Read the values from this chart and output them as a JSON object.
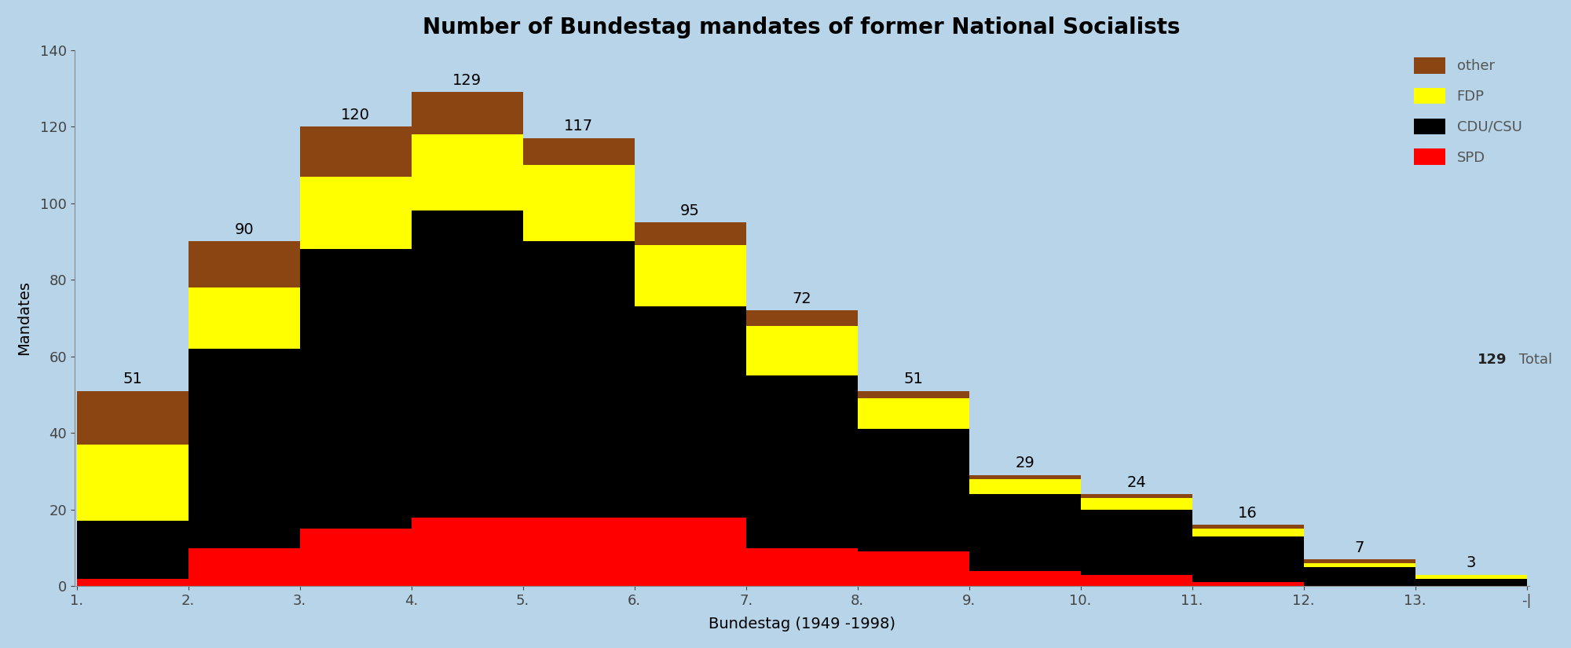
{
  "title": "Number of Bundestag mandates of former National Socialists",
  "xlabel": "Bundestag (1949 -1998)",
  "ylabel": "Mandates",
  "background_color": "#b8d4e8",
  "categories": [
    "1.",
    "2.",
    "3.",
    "4.",
    "5.",
    "6.",
    "7.",
    "8.",
    "9.",
    "10.",
    "11.",
    "12.",
    "13.",
    "-|"
  ],
  "totals": [
    51,
    90,
    120,
    129,
    117,
    95,
    72,
    51,
    29,
    24,
    16,
    7,
    3,
    0
  ],
  "spd": [
    2,
    10,
    15,
    18,
    18,
    18,
    10,
    9,
    4,
    3,
    1,
    0,
    0,
    0
  ],
  "cdu_csu": [
    15,
    52,
    73,
    80,
    72,
    55,
    45,
    32,
    20,
    17,
    12,
    5,
    2,
    0
  ],
  "fdp": [
    20,
    16,
    19,
    20,
    20,
    16,
    13,
    8,
    4,
    3,
    2,
    1,
    1,
    0
  ],
  "other": [
    14,
    12,
    13,
    11,
    7,
    6,
    4,
    2,
    1,
    1,
    1,
    1,
    0,
    0
  ],
  "colors": {
    "spd": "#ff0000",
    "cdu_csu": "#000000",
    "fdp": "#ffff00",
    "other": "#8B4513"
  },
  "legend_labels": [
    "other",
    "FDP",
    "CDU/CSU",
    "SPD"
  ],
  "legend_colors": [
    "#8B4513",
    "#ffff00",
    "#000000",
    "#ff0000"
  ],
  "ylim": [
    0,
    140
  ],
  "yticks": [
    0,
    20,
    40,
    60,
    80,
    100,
    120,
    140
  ],
  "title_fontsize": 20,
  "axis_fontsize": 14,
  "tick_fontsize": 13,
  "annot_fontsize": 14
}
